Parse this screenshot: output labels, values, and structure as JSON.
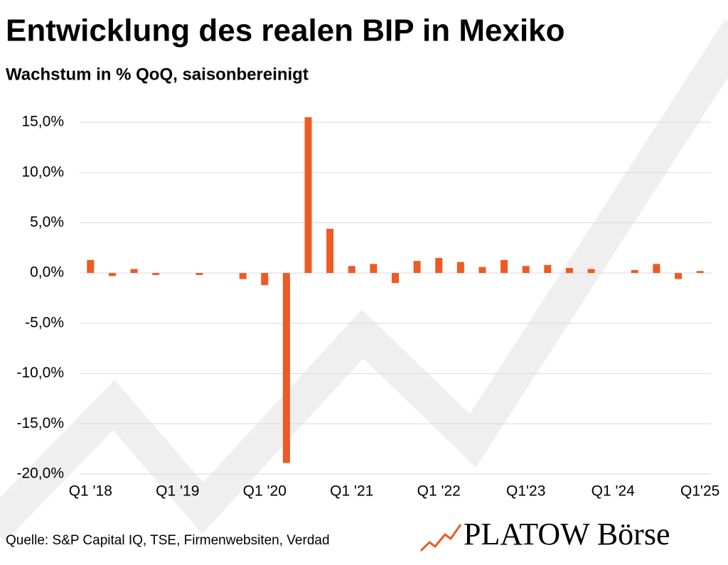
{
  "chart_data": {
    "type": "bar",
    "title": "Entwicklung des realen BIP in Mexiko",
    "subtitle": "Wachstum in % QoQ, saisonbereinigt",
    "categories": [
      "Q1 '18",
      null,
      null,
      null,
      "Q1 '19",
      null,
      null,
      null,
      "Q1 '20",
      null,
      null,
      null,
      "Q1 '21",
      null,
      null,
      null,
      "Q1 '22",
      null,
      null,
      null,
      "Q1'23",
      null,
      null,
      null,
      "Q1 '24",
      null,
      null,
      null,
      "Q1'25"
    ],
    "values": [
      1.3,
      -0.3,
      0.4,
      -0.2,
      0.0,
      -0.2,
      0.0,
      -0.6,
      -1.2,
      -18.9,
      15.5,
      4.4,
      0.7,
      0.9,
      -1.0,
      1.2,
      1.5,
      1.1,
      0.6,
      1.3,
      0.7,
      0.8,
      0.5,
      0.4,
      0.0,
      0.3,
      0.9,
      -0.6,
      0.2
    ],
    "color": "#ee5a24",
    "ylim": [
      -20,
      15
    ],
    "yticks": [
      {
        "value": -20,
        "label": "-20,0%"
      },
      {
        "value": -15,
        "label": "-15,0%"
      },
      {
        "value": -10,
        "label": "-10,0%"
      },
      {
        "value": -5,
        "label": "-5,0%"
      },
      {
        "value": 0,
        "label": "0,0%"
      },
      {
        "value": 5,
        "label": "5,0%"
      },
      {
        "value": 10,
        "label": "10,0%"
      },
      {
        "value": 15,
        "label": "15,0%"
      }
    ],
    "grid": true,
    "source": "Quelle: S&P Capital IQ, TSE, Firmenwebsiten, Verdad",
    "logo": "PLATOW Börse"
  }
}
